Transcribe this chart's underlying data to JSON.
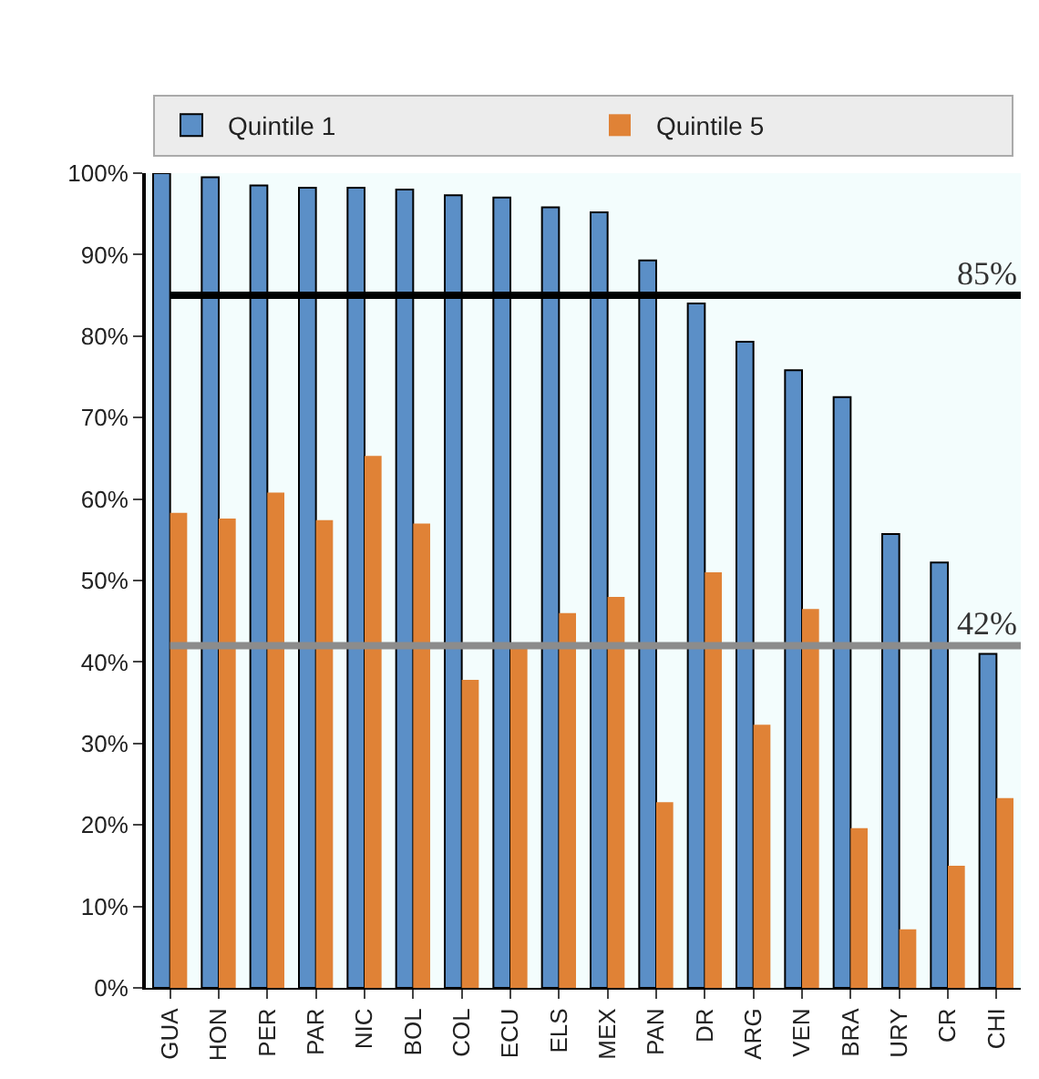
{
  "chart_data": {
    "type": "bar",
    "categories": [
      "GUA",
      "HON",
      "PER",
      "PAR",
      "NIC",
      "BOL",
      "COL",
      "ECU",
      "ELS",
      "MEX",
      "PAN",
      "DR",
      "ARG",
      "VEN",
      "BRA",
      "URY",
      "CR",
      "CHI"
    ],
    "series": [
      {
        "name": "Quintile 1",
        "color": "#5b8fc7",
        "values": [
          100,
          99.5,
          98.5,
          98.2,
          98.2,
          98,
          97.3,
          97,
          95.8,
          95.2,
          89.3,
          84,
          79.3,
          75.8,
          72.5,
          55.7,
          52.2,
          41
        ]
      },
      {
        "name": "Quintile 5",
        "color": "#e08236",
        "values": [
          58.3,
          57.6,
          60.8,
          57.4,
          65.3,
          57,
          37.8,
          41.8,
          46,
          48,
          22.8,
          51,
          32.3,
          46.5,
          19.6,
          7.2,
          15,
          23.3
        ]
      }
    ],
    "ylim": [
      0,
      100
    ],
    "yticks": [
      {
        "value": 0,
        "label": "0%"
      },
      {
        "value": 10,
        "label": "10%"
      },
      {
        "value": 20,
        "label": "20%"
      },
      {
        "value": 30,
        "label": "30%"
      },
      {
        "value": 40,
        "label": "40%"
      },
      {
        "value": 50,
        "label": "50%"
      },
      {
        "value": 60,
        "label": "60%"
      },
      {
        "value": 70,
        "label": "70%"
      },
      {
        "value": 80,
        "label": "80%"
      },
      {
        "value": 90,
        "label": "90%"
      },
      {
        "value": 100,
        "label": "100%"
      }
    ],
    "ref_lines": [
      {
        "axis": "y",
        "value": 85,
        "label": "85%",
        "color": "#000000"
      },
      {
        "axis": "y",
        "value": 42,
        "label": "42%",
        "color": "#8c8c8c"
      }
    ],
    "legend": "top",
    "grid": false
  }
}
